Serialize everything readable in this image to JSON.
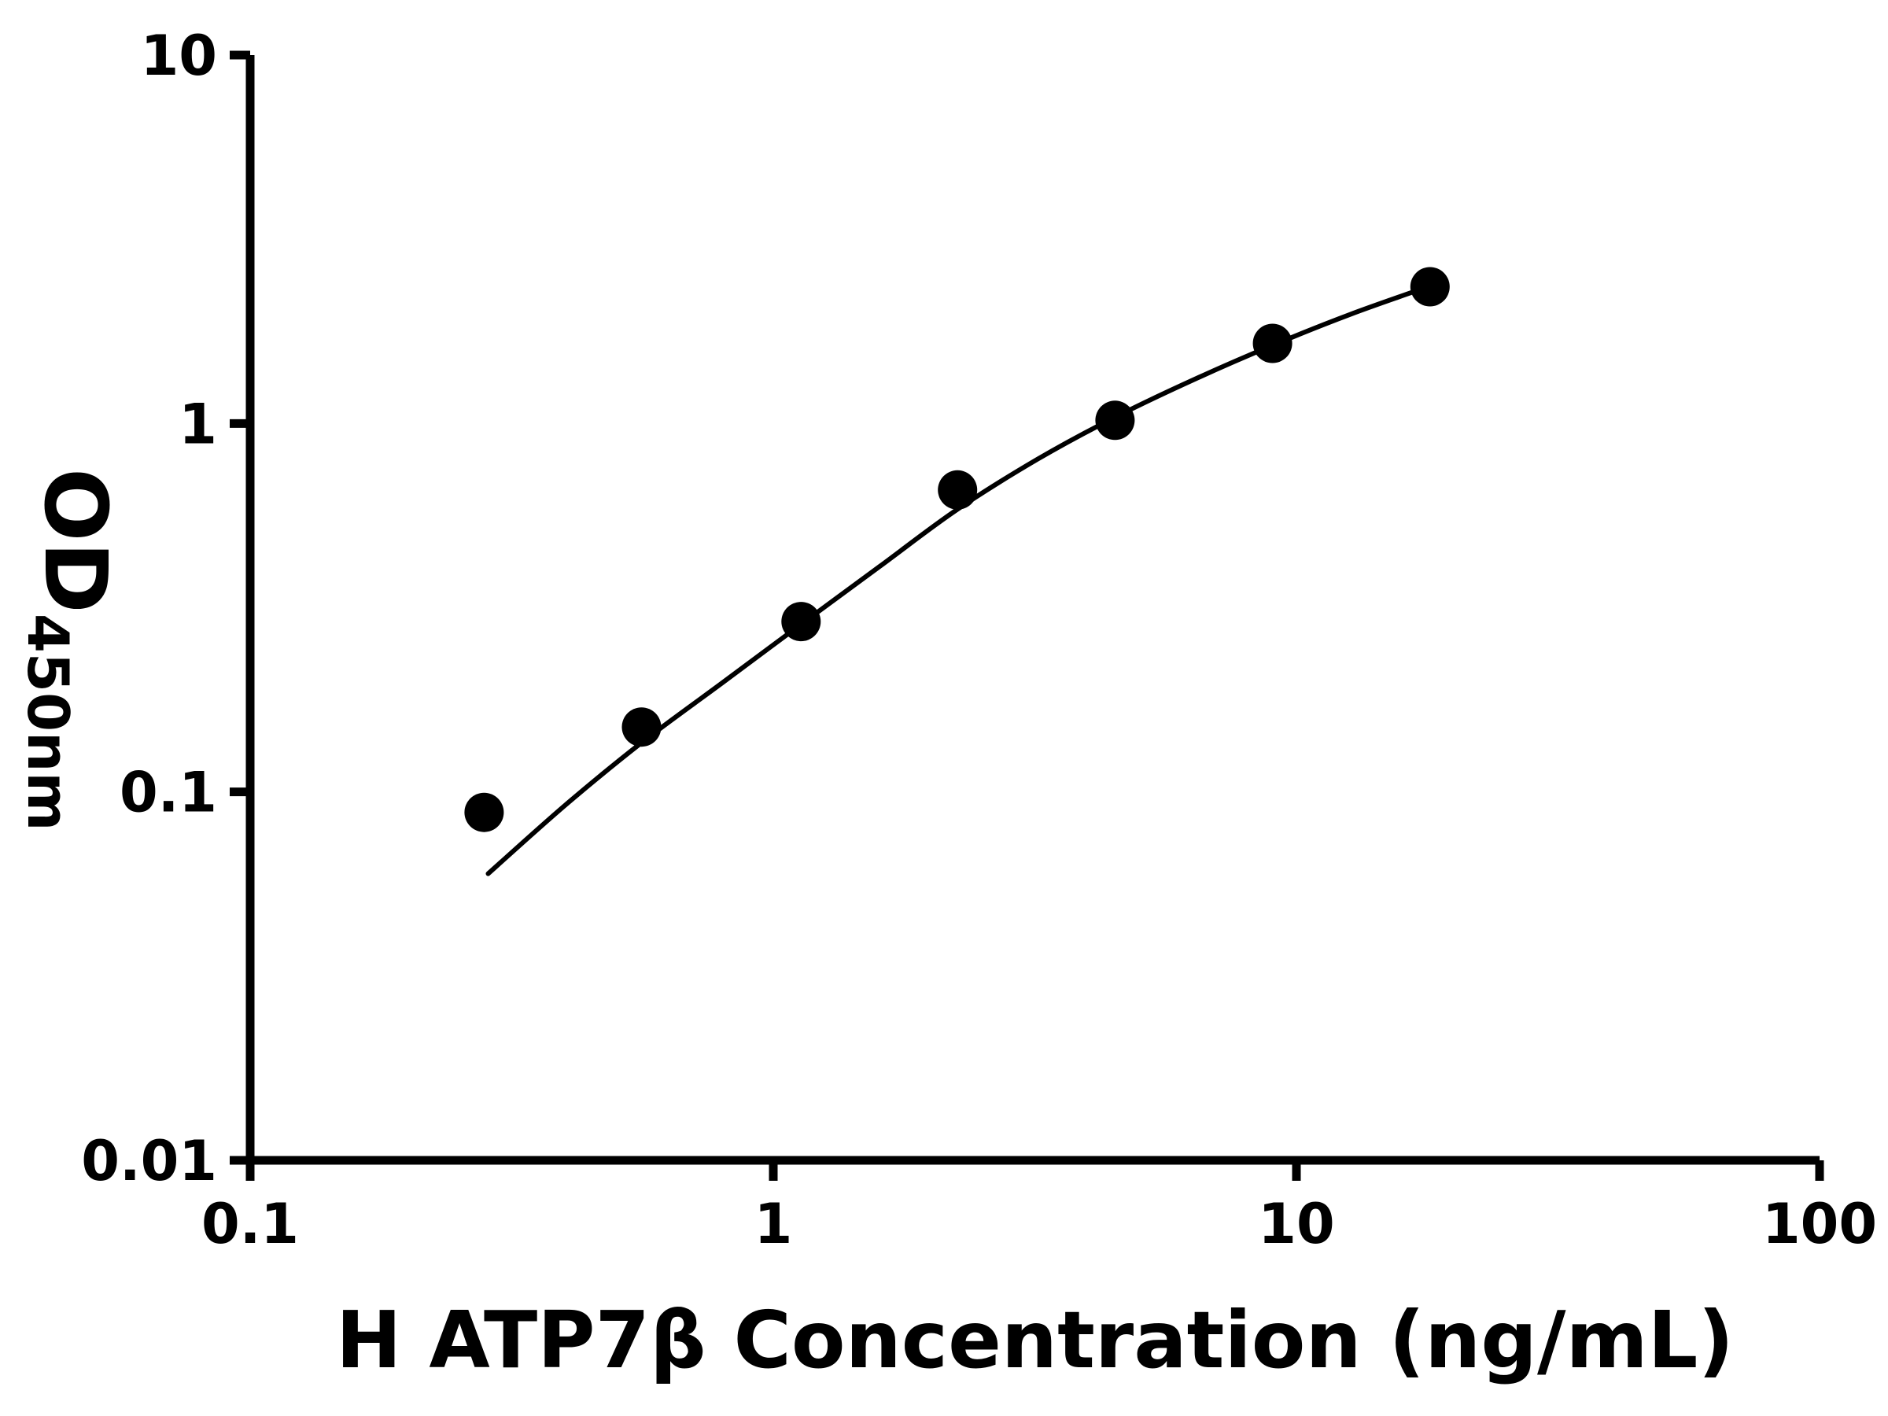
{
  "page": {
    "background_color": "#ffffff"
  },
  "chart_data": {
    "type": "scatter",
    "title": "",
    "xlabel": "H ATP7β Concentration (ng/mL)",
    "ylabel_main": "OD",
    "ylabel_subscript": "450nm",
    "x_scale": "log",
    "y_scale": "log",
    "xlim": [
      0.1,
      100
    ],
    "ylim": [
      0.01,
      10
    ],
    "x_tick_values": [
      0.1,
      1,
      10,
      100
    ],
    "x_tick_labels": [
      "0.1",
      "1",
      "10",
      "100"
    ],
    "y_tick_values": [
      0.01,
      0.1,
      1,
      10
    ],
    "y_tick_labels": [
      "0.01",
      "0.1",
      "1",
      "10"
    ],
    "grid": false,
    "legend": false,
    "axis_color": "#000000",
    "series": [
      {
        "name": "standard-curve-points",
        "type": "scatter",
        "marker": "filled-circle",
        "color": "#000000",
        "points": [
          {
            "x": 0.28,
            "y": 0.088
          },
          {
            "x": 0.56,
            "y": 0.15
          },
          {
            "x": 1.13,
            "y": 0.29
          },
          {
            "x": 2.25,
            "y": 0.66
          },
          {
            "x": 4.5,
            "y": 1.02
          },
          {
            "x": 9,
            "y": 1.65
          },
          {
            "x": 18,
            "y": 2.35
          }
        ]
      },
      {
        "name": "four-parameter-fit-curve",
        "type": "line",
        "color": "#000000",
        "points": [
          {
            "x": 0.285,
            "y": 0.06
          },
          {
            "x": 0.4,
            "y": 0.092
          },
          {
            "x": 0.56,
            "y": 0.136
          },
          {
            "x": 0.8,
            "y": 0.198
          },
          {
            "x": 1.13,
            "y": 0.285
          },
          {
            "x": 1.6,
            "y": 0.41
          },
          {
            "x": 2.25,
            "y": 0.585
          },
          {
            "x": 3.2,
            "y": 0.8
          },
          {
            "x": 4.5,
            "y": 1.04
          },
          {
            "x": 6.4,
            "y": 1.32
          },
          {
            "x": 9.0,
            "y": 1.63
          },
          {
            "x": 12.7,
            "y": 1.98
          },
          {
            "x": 18.0,
            "y": 2.36
          }
        ]
      }
    ]
  }
}
